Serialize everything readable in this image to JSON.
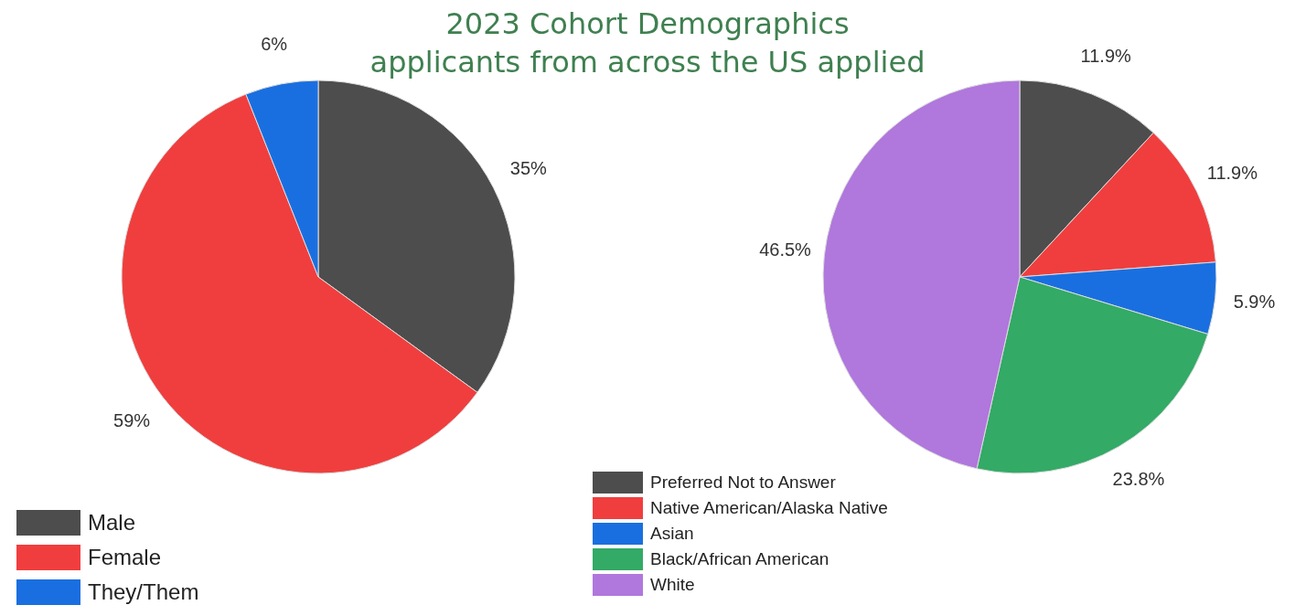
{
  "chart_data": [
    {
      "type": "pie",
      "title": "2023 Cohort Demographics",
      "subtitle": "applicants from across the US applied",
      "categories": [
        "Male",
        "Female",
        "They/Them"
      ],
      "values": [
        35,
        59,
        6
      ],
      "value_labels": [
        "35%",
        "59%",
        "6%"
      ],
      "colors": [
        "#4d4d4d",
        "#f03e3e",
        "#1a6fe0"
      ],
      "legend": "bottom left"
    },
    {
      "type": "pie",
      "categories": [
        "Preferred Not to Answer",
        "Native American/Alaska Native",
        "Asian",
        "Black/African American",
        "White"
      ],
      "values": [
        11.9,
        11.9,
        5.9,
        23.8,
        46.5
      ],
      "value_labels": [
        "11.9%",
        "11.9%",
        "5.9%",
        "23.8%",
        "46.5%"
      ],
      "colors": [
        "#4d4d4d",
        "#f03e3e",
        "#1a6fe0",
        "#33aa66",
        "#b077dd"
      ],
      "legend": "bottom left"
    }
  ]
}
